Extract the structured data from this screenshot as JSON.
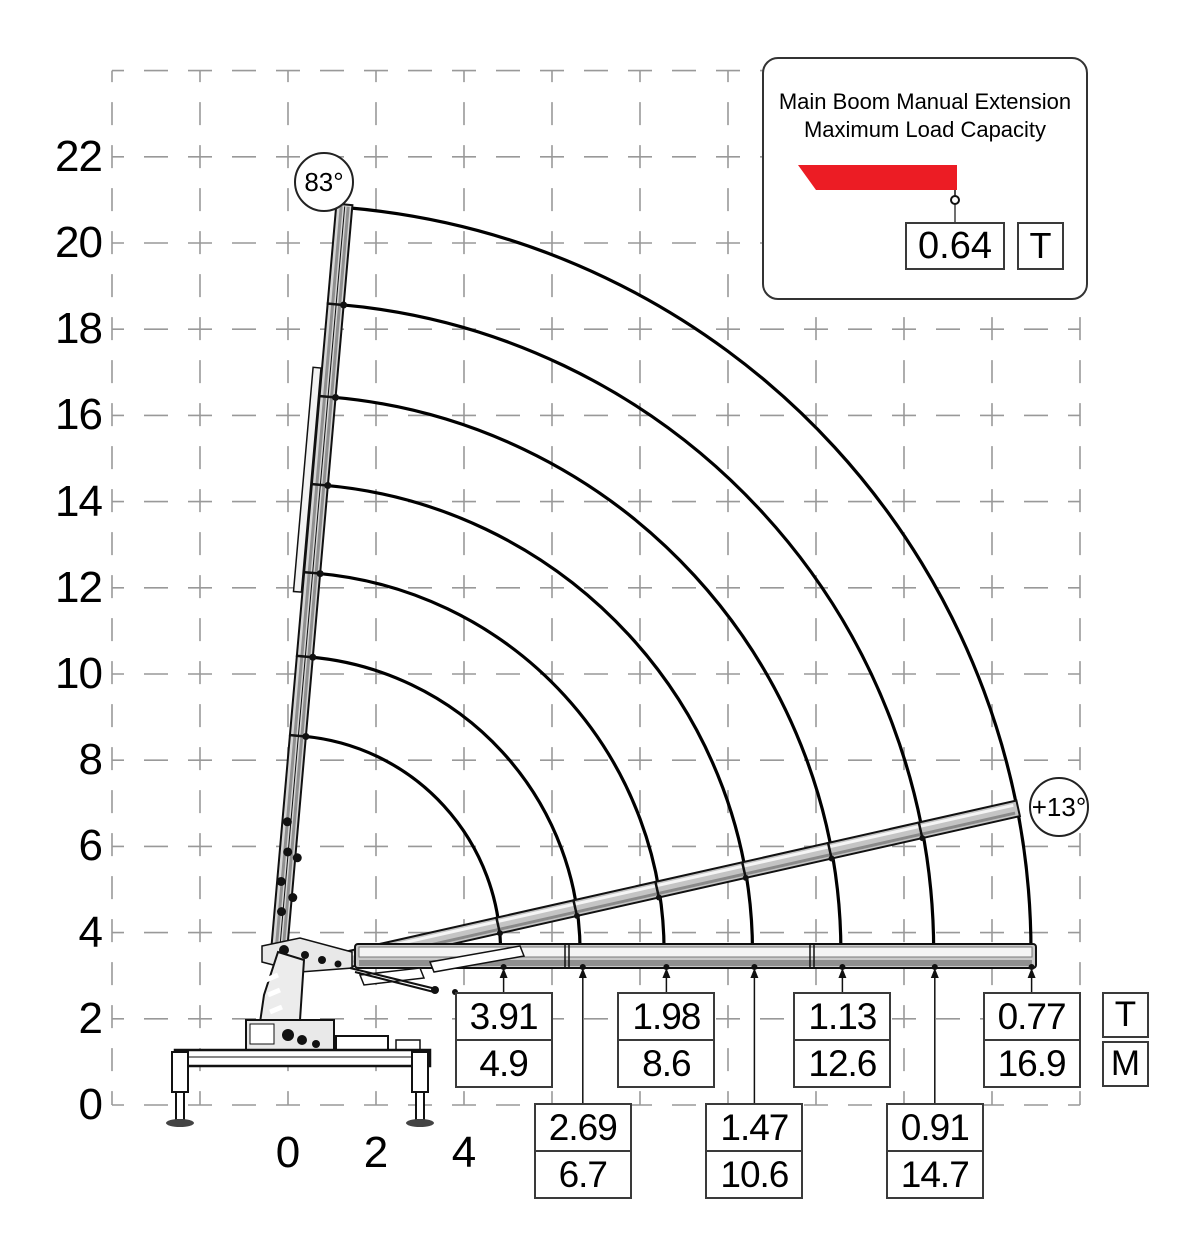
{
  "legend": {
    "title_line1": "Main Boom Manual Extension",
    "title_line2": "Maximum Load Capacity",
    "value": "0.64",
    "unit": "T",
    "boom_color": "#ec1c24"
  },
  "badges": {
    "top_angle": "83°",
    "right_angle": "+13°"
  },
  "unit_labels": {
    "load": "T",
    "outreach": "M"
  },
  "chart_data": {
    "type": "crane-load-chart",
    "title": "Main Boom Manual Extension Maximum Load Capacity",
    "x_axis": {
      "ticks": [
        0,
        2,
        4
      ],
      "units": "m",
      "grid_range": [
        -4,
        18
      ],
      "grid_step": 2
    },
    "y_axis": {
      "ticks": [
        0,
        2,
        4,
        6,
        8,
        10,
        12,
        14,
        16,
        18,
        20,
        22
      ],
      "units": "m",
      "grid_range": [
        0,
        24
      ],
      "grid_step": 2
    },
    "grid": true,
    "legend_position": "top-right",
    "boom_max_angle_deg": 83,
    "boom_min_angle_deg": 13,
    "manual_extension_max_load_t": 0.64,
    "capacity_points": [
      {
        "outreach_m": 4.9,
        "load_t": 3.91,
        "label_row": "top"
      },
      {
        "outreach_m": 6.7,
        "load_t": 2.69,
        "label_row": "bottom"
      },
      {
        "outreach_m": 8.6,
        "load_t": 1.98,
        "label_row": "top"
      },
      {
        "outreach_m": 10.6,
        "load_t": 1.47,
        "label_row": "bottom"
      },
      {
        "outreach_m": 12.6,
        "load_t": 1.13,
        "label_row": "top"
      },
      {
        "outreach_m": 14.7,
        "load_t": 0.91,
        "label_row": "bottom"
      },
      {
        "outreach_m": 16.9,
        "load_t": 0.77,
        "label_row": "top"
      }
    ]
  }
}
